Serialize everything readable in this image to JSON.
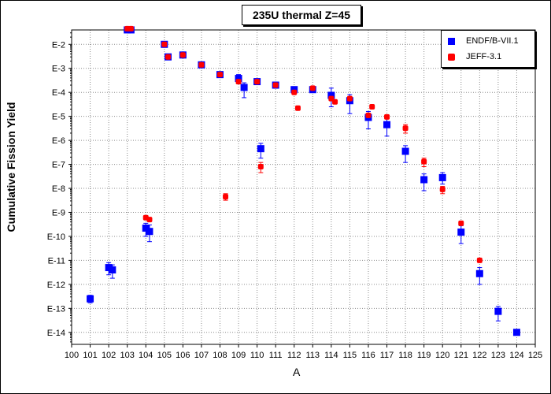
{
  "chart_data": {
    "type": "scatter",
    "title": "235U thermal Z=45",
    "xlabel": "A",
    "ylabel": "Cumulative Fission Yield",
    "xlim": [
      100,
      125
    ],
    "ylim_log10": [
      -14.5,
      -1.4
    ],
    "y_scale": "log",
    "grid": true,
    "legend_position": "top-right",
    "x_ticks": [
      "100",
      "101",
      "102",
      "103",
      "104",
      "105",
      "106",
      "107",
      "108",
      "109",
      "110",
      "111",
      "112",
      "113",
      "114",
      "115",
      "116",
      "117",
      "118",
      "119",
      "120",
      "121",
      "122",
      "123",
      "124",
      "125"
    ],
    "y_ticks": [
      {
        "value": 0.01,
        "label": "E-2"
      },
      {
        "value": 0.001,
        "label": "E-3"
      },
      {
        "value": 0.0001,
        "label": "E-4"
      },
      {
        "value": 1e-05,
        "label": "E-5"
      },
      {
        "value": 1e-06,
        "label": "E-6"
      },
      {
        "value": 1e-07,
        "label": "E-7"
      },
      {
        "value": 1e-08,
        "label": "E-8"
      },
      {
        "value": 1e-09,
        "label": "E-9"
      },
      {
        "value": 1e-10,
        "label": "E-10"
      },
      {
        "value": 1e-11,
        "label": "E-11"
      },
      {
        "value": 1e-12,
        "label": "E-12"
      },
      {
        "value": 1e-13,
        "label": "E-13"
      },
      {
        "value": 1e-14,
        "label": "E-14"
      }
    ],
    "series": [
      {
        "name": "ENDF/B-VII.1",
        "color": "#0000ff",
        "marker": "square",
        "points": [
          {
            "x": 101,
            "y": 2.5e-13,
            "ylo": 1.7e-13,
            "yhi": 3.5e-13
          },
          {
            "x": 102,
            "y": 5e-12,
            "ylo": 2.5e-12,
            "yhi": 8e-12
          },
          {
            "x": 102.2,
            "y": 4e-12,
            "ylo": 1.8e-12,
            "yhi": 6.5e-12
          },
          {
            "x": 103,
            "y": 0.04
          },
          {
            "x": 103.2,
            "y": 0.04
          },
          {
            "x": 104,
            "y": 2.2e-10,
            "ylo": 1e-10,
            "yhi": 3.5e-10
          },
          {
            "x": 104.2,
            "y": 1.6e-10,
            "ylo": 6e-11,
            "yhi": 3e-10
          },
          {
            "x": 105,
            "y": 0.01
          },
          {
            "x": 105.2,
            "y": 0.003
          },
          {
            "x": 106,
            "y": 0.0036
          },
          {
            "x": 107,
            "y": 0.0014
          },
          {
            "x": 108,
            "y": 0.00055
          },
          {
            "x": 109,
            "y": 0.00038,
            "ylo": 0.00025,
            "yhi": 0.00055
          },
          {
            "x": 109.3,
            "y": 0.00016,
            "ylo": 6e-05,
            "yhi": 0.00025
          },
          {
            "x": 110,
            "y": 0.00028
          },
          {
            "x": 110.2,
            "y": 4.5e-07,
            "ylo": 1.8e-07,
            "yhi": 7.5e-07
          },
          {
            "x": 111,
            "y": 0.0002
          },
          {
            "x": 112,
            "y": 0.00013
          },
          {
            "x": 113,
            "y": 0.00013
          },
          {
            "x": 114,
            "y": 7.5e-05,
            "ylo": 2.5e-05,
            "yhi": 0.00015
          },
          {
            "x": 115,
            "y": 4.5e-05,
            "ylo": 1.3e-05,
            "yhi": 8e-05
          },
          {
            "x": 116,
            "y": 9e-06,
            "ylo": 3e-06,
            "yhi": 1.6e-05
          },
          {
            "x": 117,
            "y": 4.5e-06,
            "ylo": 1.5e-06,
            "yhi": 8e-06
          },
          {
            "x": 118,
            "y": 3.5e-07,
            "ylo": 1.2e-07,
            "yhi": 6e-07
          },
          {
            "x": 119,
            "y": 2.3e-08,
            "ylo": 8e-09,
            "yhi": 4e-08
          },
          {
            "x": 120,
            "y": 2.8e-08,
            "ylo": 1.5e-08,
            "yhi": 4.5e-08
          },
          {
            "x": 121,
            "y": 1.5e-10,
            "ylo": 5e-11,
            "yhi": 2.8e-10
          },
          {
            "x": 122,
            "y": 2.8e-12,
            "ylo": 1e-12,
            "yhi": 5e-12
          },
          {
            "x": 123,
            "y": 7.5e-14,
            "ylo": 3e-14,
            "yhi": 1.2e-13
          },
          {
            "x": 124,
            "y": 1e-14
          }
        ]
      },
      {
        "name": "JEFF-3.1",
        "color": "#ff0000",
        "marker": "circle",
        "points": [
          {
            "x": 103,
            "y": 0.045
          },
          {
            "x": 103.2,
            "y": 0.045
          },
          {
            "x": 104,
            "y": 6e-10
          },
          {
            "x": 104.2,
            "y": 5e-10
          },
          {
            "x": 105,
            "y": 0.01
          },
          {
            "x": 105.2,
            "y": 0.003
          },
          {
            "x": 106,
            "y": 0.0036
          },
          {
            "x": 107,
            "y": 0.0014
          },
          {
            "x": 108,
            "y": 0.00055
          },
          {
            "x": 108.3,
            "y": 4.5e-09,
            "ylo": 3.2e-09,
            "yhi": 6e-09
          },
          {
            "x": 109,
            "y": 0.00028
          },
          {
            "x": 110,
            "y": 0.00028
          },
          {
            "x": 110.2,
            "y": 8e-08,
            "ylo": 4.5e-08,
            "yhi": 1.2e-07
          },
          {
            "x": 111,
            "y": 0.0002
          },
          {
            "x": 112,
            "y": 0.0001
          },
          {
            "x": 112.2,
            "y": 2.2e-05
          },
          {
            "x": 113,
            "y": 0.00015
          },
          {
            "x": 114,
            "y": 5.5e-05
          },
          {
            "x": 114.2,
            "y": 4e-05
          },
          {
            "x": 115,
            "y": 5.5e-05
          },
          {
            "x": 116,
            "y": 1.1e-05
          },
          {
            "x": 116.2,
            "y": 2.5e-05
          },
          {
            "x": 117,
            "y": 9.5e-06
          },
          {
            "x": 118,
            "y": 3.2e-06,
            "ylo": 2e-06,
            "yhi": 4.5e-06
          },
          {
            "x": 119,
            "y": 1.3e-07,
            "ylo": 8e-08,
            "yhi": 1.8e-07
          },
          {
            "x": 120,
            "y": 9e-09,
            "ylo": 6e-09,
            "yhi": 1.2e-08
          },
          {
            "x": 121,
            "y": 3.5e-10
          },
          {
            "x": 122,
            "y": 1e-11
          }
        ]
      }
    ]
  }
}
